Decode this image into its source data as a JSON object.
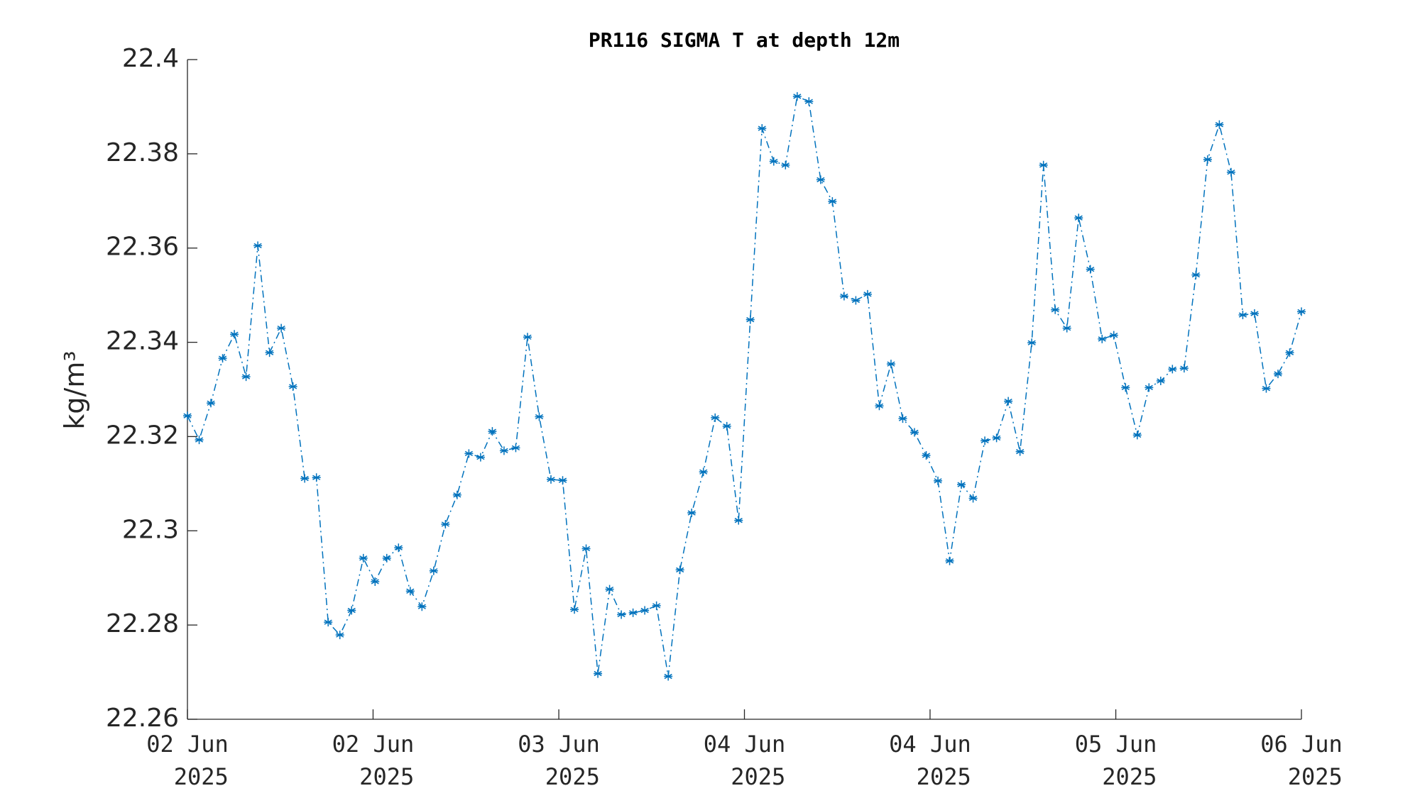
{
  "chart_data": {
    "type": "line",
    "title": "PR116 SIGMA T at depth 12m",
    "ylabel": "kg/m³",
    "series": [
      {
        "color": "#0072BD",
        "marker": "asterisk",
        "linestyle": "dashdot",
        "values": [
          22.3244,
          22.3193,
          22.3271,
          22.3366,
          22.3417,
          22.3327,
          22.3605,
          22.3378,
          22.343,
          22.3306,
          22.3111,
          22.3113,
          22.2806,
          22.2779,
          22.2831,
          22.2942,
          22.2892,
          22.2942,
          22.2964,
          22.2872,
          22.2839,
          22.2915,
          22.3014,
          22.3076,
          22.3164,
          22.3156,
          22.3211,
          22.317,
          22.3176,
          22.3411,
          22.3242,
          22.3109,
          22.3107,
          22.2833,
          22.2962,
          22.2697,
          22.2876,
          22.2822,
          22.2826,
          22.2831,
          22.2841,
          22.2691,
          22.2917,
          22.3038,
          22.3125,
          22.324,
          22.3222,
          22.3022,
          22.3448,
          22.3854,
          22.3784,
          22.3776,
          22.3922,
          22.3911,
          22.3745,
          22.3699,
          22.3498,
          22.3489,
          22.3502,
          22.3265,
          22.3354,
          22.3238,
          22.3209,
          22.316,
          22.3106,
          22.2936,
          22.3098,
          22.3069,
          22.3191,
          22.3197,
          22.3275,
          22.3168,
          22.3399,
          22.3776,
          22.3469,
          22.343,
          22.3664,
          22.3555,
          22.3407,
          22.3415,
          22.3304,
          22.3203,
          22.3304,
          22.3318,
          22.3343,
          22.3345,
          22.3543,
          22.3788,
          22.3862,
          22.3761,
          22.3458,
          22.3461,
          22.3302,
          22.3333,
          22.3378,
          22.3465
        ]
      }
    ],
    "xlim": [
      0,
      95
    ],
    "xticks": [
      {
        "value": 0,
        "label": "02 Jun\n2025"
      },
      {
        "value": 15.83,
        "label": "02 Jun\n2025"
      },
      {
        "value": 31.67,
        "label": "03 Jun\n2025"
      },
      {
        "value": 47.5,
        "label": "04 Jun\n2025"
      },
      {
        "value": 63.33,
        "label": "04 Jun\n2025"
      },
      {
        "value": 79.17,
        "label": "05 Jun\n2025"
      },
      {
        "value": 95,
        "label": "06 Jun\n2025"
      }
    ],
    "ylim": [
      22.26,
      22.4
    ],
    "yticks": [
      22.26,
      22.28,
      22.3,
      22.32,
      22.34,
      22.36,
      22.38,
      22.4
    ],
    "grid": false
  }
}
